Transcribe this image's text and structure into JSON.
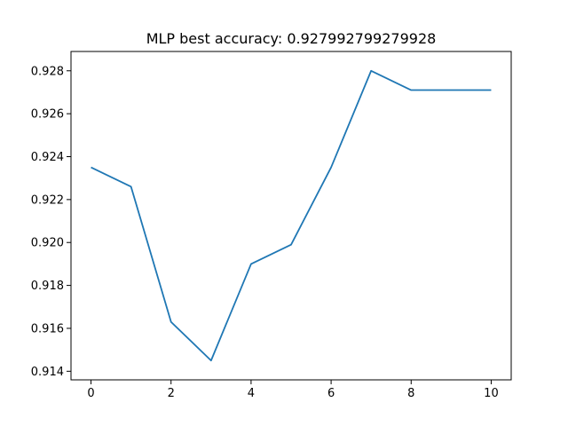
{
  "chart_data": {
    "type": "line",
    "title": "MLP best accuracy: 0.927992799279928",
    "xlabel": "",
    "ylabel": "",
    "xlim": [
      -0.5,
      10.5
    ],
    "ylim": [
      0.9136,
      0.9289
    ],
    "grid": false,
    "x_ticks": [
      0,
      2,
      4,
      6,
      8,
      10
    ],
    "x_tick_labels": [
      "0",
      "2",
      "4",
      "6",
      "8",
      "10"
    ],
    "y_ticks": [
      0.914,
      0.916,
      0.918,
      0.92,
      0.922,
      0.924,
      0.926,
      0.928
    ],
    "y_tick_labels": [
      "0.914",
      "0.916",
      "0.918",
      "0.920",
      "0.922",
      "0.924",
      "0.926",
      "0.928"
    ],
    "series": [
      {
        "color": "#1f77b4",
        "x": [
          0,
          1,
          2,
          3,
          4,
          5,
          6,
          7,
          8,
          9,
          10
        ],
        "values": [
          0.9235,
          0.9226,
          0.9163,
          0.9145,
          0.919,
          0.9199,
          0.9235,
          0.928,
          0.9271,
          0.9271,
          0.9271
        ]
      }
    ]
  }
}
